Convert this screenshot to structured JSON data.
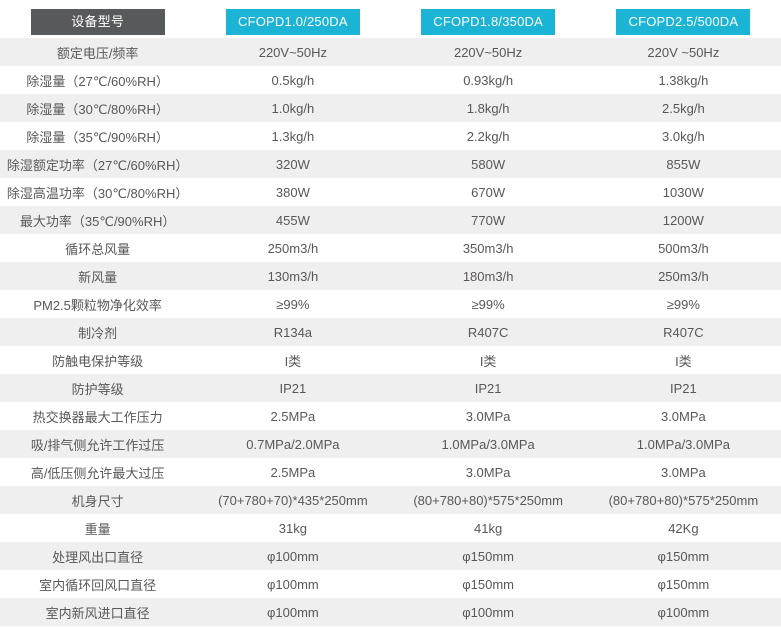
{
  "table": {
    "header": {
      "label_badge": "设备型号",
      "models": [
        "CFOPD1.0/250DA",
        "CFOPD1.8/350DA",
        "CFOPD2.5/500DA"
      ]
    },
    "rows": [
      {
        "label": "额定电压/频率",
        "values": [
          "220V~50Hz",
          "220V~50Hz",
          "220V ~50Hz"
        ]
      },
      {
        "label": "除湿量（27℃/60%RH）",
        "values": [
          "0.5kg/h",
          "0.93kg/h",
          "1.38kg/h"
        ]
      },
      {
        "label": "除湿量（30℃/80%RH）",
        "values": [
          "1.0kg/h",
          "1.8kg/h",
          "2.5kg/h"
        ]
      },
      {
        "label": "除湿量（35℃/90%RH）",
        "values": [
          "1.3kg/h",
          "2.2kg/h",
          "3.0kg/h"
        ]
      },
      {
        "label": "除湿额定功率（27℃/60%RH）",
        "values": [
          "320W",
          "580W",
          "855W"
        ]
      },
      {
        "label": "除湿高温功率（30℃/80%RH）",
        "values": [
          "380W",
          "670W",
          "1030W"
        ]
      },
      {
        "label": "最大功率（35℃/90%RH）",
        "values": [
          "455W",
          "770W",
          "1200W"
        ]
      },
      {
        "label": "循环总风量",
        "values": [
          "250m3/h",
          "350m3/h",
          "500m3/h"
        ]
      },
      {
        "label": "新风量",
        "values": [
          "130m3/h",
          "180m3/h",
          "250m3/h"
        ]
      },
      {
        "label": "PM2.5颗粒物净化效率",
        "values": [
          "≥99%",
          "≥99%",
          "≥99%"
        ]
      },
      {
        "label": "制冷剂",
        "values": [
          "R134a",
          "R407C",
          "R407C"
        ]
      },
      {
        "label": "防触电保护等级",
        "values": [
          "I类",
          "I类",
          "I类"
        ]
      },
      {
        "label": "防护等级",
        "values": [
          "IP21",
          "IP21",
          "IP21"
        ]
      },
      {
        "label": "热交换器最大工作压力",
        "values": [
          "2.5MPa",
          "3.0MPa",
          "3.0MPa"
        ]
      },
      {
        "label": "吸/排气侧允许工作过压",
        "values": [
          "0.7MPa/2.0MPa",
          "1.0MPa/3.0MPa",
          "1.0MPa/3.0MPa"
        ]
      },
      {
        "label": "高/低压侧允许最大过压",
        "values": [
          "2.5MPa",
          "3.0MPa",
          "3.0MPa"
        ]
      },
      {
        "label": "机身尺寸",
        "values": [
          "(70+780+70)*435*250mm",
          "(80+780+80)*575*250mm",
          "(80+780+80)*575*250mm"
        ]
      },
      {
        "label": "重量",
        "values": [
          "31kg",
          "41kg",
          "42Kg"
        ]
      },
      {
        "label": "处理风出口直径",
        "values": [
          "φ100mm",
          "φ150mm",
          "φ150mm"
        ]
      },
      {
        "label": "室内循环回风口直径",
        "values": [
          "φ100mm",
          "φ150mm",
          "φ150mm"
        ]
      },
      {
        "label": "室内新风进口直径",
        "values": [
          "φ100mm",
          "φ100mm",
          "φ100mm"
        ]
      }
    ],
    "colors": {
      "label_badge_bg": "#58595b",
      "model_badge_bg": "#1bb4d5",
      "badge_text": "#ffffff",
      "stripe_bg": "#efefef",
      "cell_text": "#595757"
    }
  }
}
